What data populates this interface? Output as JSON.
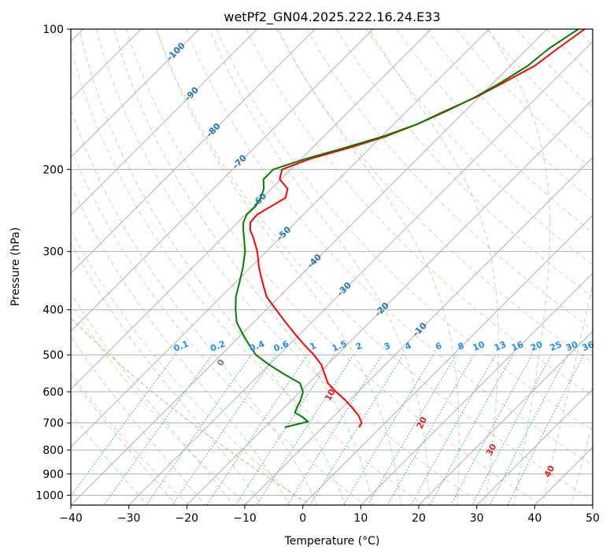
{
  "chart_data": {
    "type": "skew-t",
    "title": "wetPf2_GN04.2025.222.16.24.E33",
    "xlabel": "Temperature (°C)",
    "ylabel": "Pressure (hPa)",
    "xlim": [
      -40,
      50
    ],
    "ylim": [
      1050,
      100
    ],
    "y_scale": "log",
    "x_ticks": [
      -40,
      -30,
      -20,
      -10,
      0,
      10,
      20,
      30,
      40,
      50
    ],
    "y_ticks": [
      100,
      200,
      300,
      400,
      500,
      600,
      700,
      800,
      900,
      1000
    ],
    "grid": true,
    "series": [
      {
        "color": "#ff0000",
        "points": [
          {
            "p": 100,
            "t": -33.5
          },
          {
            "p": 110,
            "t": -34.8
          },
          {
            "p": 120,
            "t": -35.8
          },
          {
            "p": 130,
            "t": -38.2
          },
          {
            "p": 140,
            "t": -40.5
          },
          {
            "p": 150,
            "t": -43.5
          },
          {
            "p": 160,
            "t": -46.0
          },
          {
            "p": 170,
            "t": -49.3
          },
          {
            "p": 180,
            "t": -53.7
          },
          {
            "p": 190,
            "t": -58.5
          },
          {
            "p": 200,
            "t": -61.5
          },
          {
            "p": 210,
            "t": -60.2
          },
          {
            "p": 220,
            "t": -57.2
          },
          {
            "p": 230,
            "t": -56.0
          },
          {
            "p": 240,
            "t": -57.0
          },
          {
            "p": 250,
            "t": -58.0
          },
          {
            "p": 260,
            "t": -57.8
          },
          {
            "p": 270,
            "t": -56.5
          },
          {
            "p": 280,
            "t": -54.7
          },
          {
            "p": 300,
            "t": -51.6
          },
          {
            "p": 325,
            "t": -48.5
          },
          {
            "p": 350,
            "t": -45.3
          },
          {
            "p": 375,
            "t": -42.2
          },
          {
            "p": 400,
            "t": -38.3
          },
          {
            "p": 425,
            "t": -34.6
          },
          {
            "p": 450,
            "t": -31.0
          },
          {
            "p": 475,
            "t": -27.5
          },
          {
            "p": 500,
            "t": -24.0
          },
          {
            "p": 525,
            "t": -21.0
          },
          {
            "p": 550,
            "t": -18.8
          },
          {
            "p": 575,
            "t": -16.7
          },
          {
            "p": 600,
            "t": -13.8
          },
          {
            "p": 625,
            "t": -10.8
          },
          {
            "p": 650,
            "t": -8.2
          },
          {
            "p": 675,
            "t": -5.8
          },
          {
            "p": 700,
            "t": -4.0
          },
          {
            "p": 715,
            "t": -3.7
          }
        ]
      },
      {
        "color": "#008000",
        "points": [
          {
            "p": 100,
            "t": -34.6
          },
          {
            "p": 110,
            "t": -36.3
          },
          {
            "p": 120,
            "t": -37.0
          },
          {
            "p": 130,
            "t": -38.7
          },
          {
            "p": 140,
            "t": -40.7
          },
          {
            "p": 150,
            "t": -43.2
          },
          {
            "p": 160,
            "t": -46.0
          },
          {
            "p": 170,
            "t": -49.8
          },
          {
            "p": 180,
            "t": -54.5
          },
          {
            "p": 190,
            "t": -59.3
          },
          {
            "p": 200,
            "t": -63.0
          },
          {
            "p": 210,
            "t": -63.0
          },
          {
            "p": 220,
            "t": -61.3
          },
          {
            "p": 230,
            "t": -60.3
          },
          {
            "p": 240,
            "t": -59.7
          },
          {
            "p": 250,
            "t": -59.8
          },
          {
            "p": 260,
            "t": -59.0
          },
          {
            "p": 270,
            "t": -57.7
          },
          {
            "p": 280,
            "t": -56.3
          },
          {
            "p": 300,
            "t": -53.7
          },
          {
            "p": 325,
            "t": -51.3
          },
          {
            "p": 350,
            "t": -49.3
          },
          {
            "p": 375,
            "t": -47.5
          },
          {
            "p": 400,
            "t": -45.3
          },
          {
            "p": 425,
            "t": -43.0
          },
          {
            "p": 450,
            "t": -40.0
          },
          {
            "p": 475,
            "t": -37.0
          },
          {
            "p": 500,
            "t": -34.0
          },
          {
            "p": 525,
            "t": -30.0
          },
          {
            "p": 550,
            "t": -25.8
          },
          {
            "p": 575,
            "t": -21.5
          },
          {
            "p": 600,
            "t": -19.5
          },
          {
            "p": 625,
            "t": -18.5
          },
          {
            "p": 650,
            "t": -17.8
          },
          {
            "p": 665,
            "t": -17.3
          },
          {
            "p": 680,
            "t": -15.2
          },
          {
            "p": 695,
            "t": -13.5
          },
          {
            "p": 705,
            "t": -15.0
          },
          {
            "p": 715,
            "t": -16.5
          }
        ]
      }
    ],
    "isotherm_labels": [
      -100,
      -90,
      -80,
      -70,
      -60,
      -50,
      -40,
      -30,
      -20,
      -10
    ],
    "moist_adiabat_labels": [
      0,
      10,
      20,
      30,
      40
    ],
    "mixing_ratio_labels": [
      "0.1",
      "0.2",
      "0.4",
      "0.6",
      "1",
      "1.5",
      "2",
      "3",
      "4",
      "6",
      "8",
      "10",
      "13",
      "16",
      "20",
      "25",
      "30",
      "36"
    ],
    "colors": {
      "temperature": "#ff0000",
      "dewpoint": "#008000",
      "isotherm_label": "#1f77b4",
      "mixing_ratio": "#1f8ff0",
      "dry_adiabat": "#ff7f50",
      "moist_adiabat": "#2ca02c",
      "moist_label_pos": "#d62728",
      "moist_label_zero": "#7f7f7f",
      "grid": "#b0b0b0",
      "extra_curve": "#d2b48c"
    }
  }
}
